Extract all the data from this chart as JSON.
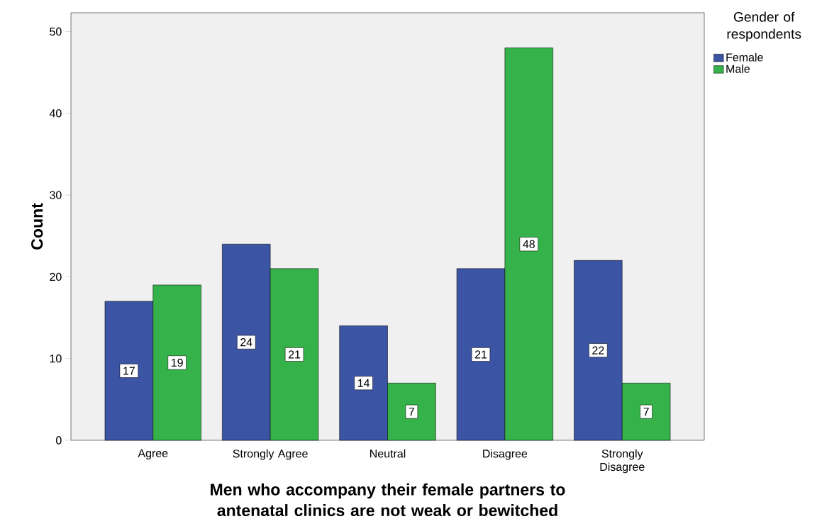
{
  "chart_data": {
    "type": "bar",
    "categories": [
      "Agree",
      "Strongly Agree",
      "Neutral",
      "Disagree",
      "Strongly Disagree"
    ],
    "series": [
      {
        "name": "Female",
        "color": "#3c54a4",
        "values": [
          17,
          24,
          14,
          21,
          22
        ]
      },
      {
        "name": "Male",
        "color": "#35b34a",
        "values": [
          19,
          21,
          7,
          48,
          7
        ]
      }
    ],
    "xlabel": "Men who accompany their female partners to antenatal clinics are  not weak or bewitched",
    "ylabel": "Count",
    "legend_title": "Gender of respondents",
    "ylim": [
      0,
      52.3
    ],
    "yticks": [
      0,
      10,
      20,
      30,
      40,
      50
    ],
    "data_labels": true,
    "legend": "top right",
    "grid": false
  }
}
